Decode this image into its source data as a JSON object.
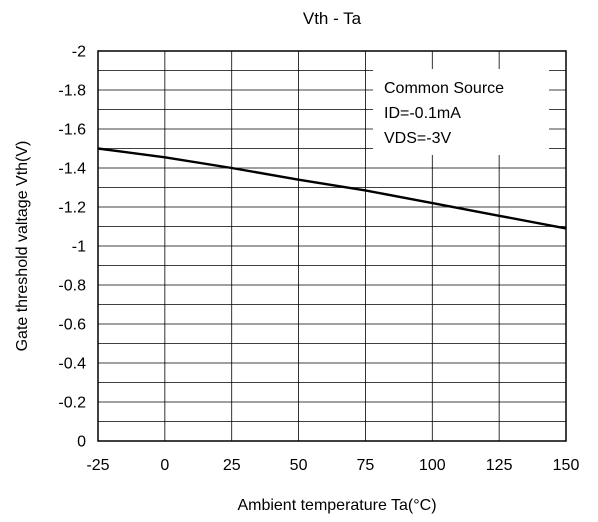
{
  "chart_data": {
    "type": "line",
    "title": "Vth - Ta",
    "xlabel": "Ambient temperature Ta(°C)",
    "ylabel": "Gate threshold valtage Vth(V)",
    "xlim": [
      -25,
      150
    ],
    "ylim": [
      0,
      -2
    ],
    "x_ticks": [
      "-25",
      "0",
      "25",
      "50",
      "75",
      "100",
      "125",
      "150"
    ],
    "y_ticks": [
      "-2",
      "-1.8",
      "-1.6",
      "-1.4",
      "-1.2",
      "-1",
      "-0.8",
      "-0.6",
      "-0.4",
      "-0.2",
      "0"
    ],
    "grid": true,
    "annotation": [
      "Common Source",
      "ID=-0.1mA",
      "VDS=-3V"
    ],
    "series": [
      {
        "x": [
          -25,
          0,
          25,
          50,
          75,
          100,
          125,
          150
        ],
        "y": [
          -1.5,
          -1.455,
          -1.4,
          -1.34,
          -1.285,
          -1.22,
          -1.155,
          -1.09
        ]
      }
    ]
  }
}
